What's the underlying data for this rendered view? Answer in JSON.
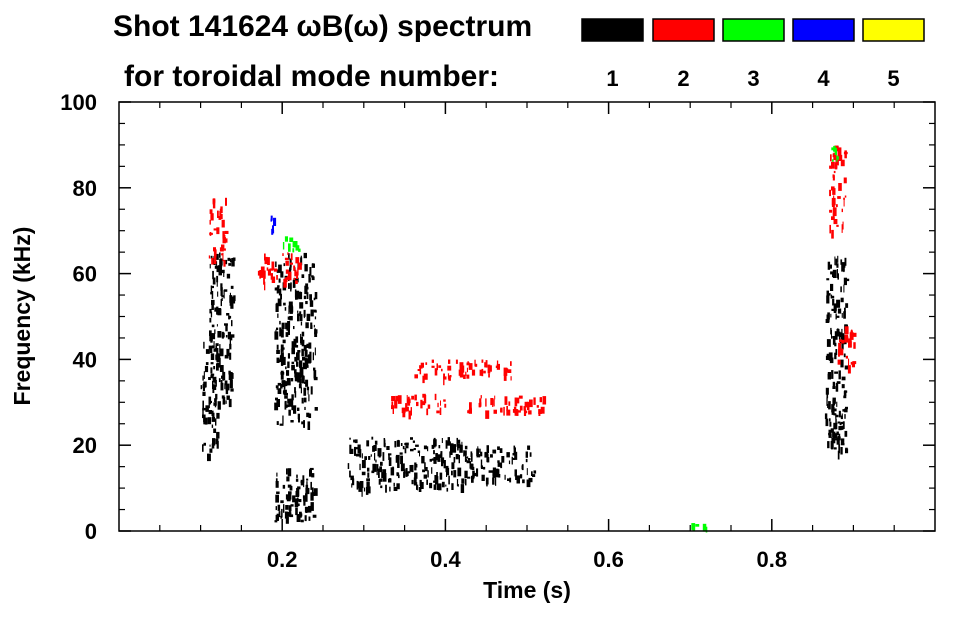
{
  "chart_data": {
    "type": "spectrogram",
    "title_line1": "Shot 141624 ωB(ω) spectrum",
    "title_line2": "for toroidal mode number:",
    "xlabel": "Time (s)",
    "ylabel": "Frequency (kHz)",
    "xlim": [
      0.0,
      1.0
    ],
    "ylim": [
      0,
      100
    ],
    "x_ticks": [
      0.2,
      0.4,
      0.6,
      0.8
    ],
    "x_tick_labels": [
      "0.2",
      "0.4",
      "0.6",
      "0.8"
    ],
    "y_ticks": [
      0,
      20,
      40,
      60,
      80,
      100
    ],
    "y_tick_labels": [
      "0",
      "20",
      "40",
      "60",
      "80",
      "100"
    ],
    "legend": [
      {
        "label": "1",
        "color": "#000000"
      },
      {
        "label": "2",
        "color": "#ff0000"
      },
      {
        "label": "3",
        "color": "#00ff00"
      },
      {
        "label": "4",
        "color": "#0000ff"
      },
      {
        "label": "5",
        "color": "#ffff00"
      }
    ],
    "series": [
      {
        "name": "1",
        "color": "#000000",
        "regions": [
          {
            "t": [
              0.11,
              0.14
            ],
            "f": [
              30,
              65
            ]
          },
          {
            "t": [
              0.1,
              0.12
            ],
            "f": [
              18,
              45
            ]
          },
          {
            "t": [
              0.19,
              0.24
            ],
            "f": [
              25,
              65
            ]
          },
          {
            "t": [
              0.19,
              0.24
            ],
            "f": [
              2,
              15
            ]
          },
          {
            "t": [
              0.28,
              0.32
            ],
            "f": [
              10,
              22
            ]
          },
          {
            "t": [
              0.32,
              0.42
            ],
            "f": [
              10,
              22
            ]
          },
          {
            "t": [
              0.42,
              0.51
            ],
            "f": [
              12,
              20
            ]
          },
          {
            "t": [
              0.865,
              0.89
            ],
            "f": [
              20,
              65
            ]
          },
          {
            "t": [
              0.87,
              0.89
            ],
            "f": [
              18,
              30
            ]
          }
        ]
      },
      {
        "name": "2",
        "color": "#ff0000",
        "regions": [
          {
            "t": [
              0.11,
              0.13
            ],
            "f": [
              62,
              78
            ]
          },
          {
            "t": [
              0.17,
              0.22
            ],
            "f": [
              58,
              65
            ]
          },
          {
            "t": [
              0.33,
              0.4
            ],
            "f": [
              28,
              32
            ]
          },
          {
            "t": [
              0.36,
              0.48
            ],
            "f": [
              36,
              40
            ]
          },
          {
            "t": [
              0.42,
              0.52
            ],
            "f": [
              28,
              32
            ]
          },
          {
            "t": [
              0.87,
              0.89
            ],
            "f": [
              70,
              90
            ]
          },
          {
            "t": [
              0.88,
              0.9
            ],
            "f": [
              38,
              48
            ]
          }
        ]
      },
      {
        "name": "3",
        "color": "#00ff00",
        "regions": [
          {
            "t": [
              0.2,
              0.22
            ],
            "f": [
              65,
              69
            ]
          },
          {
            "t": [
              0.87,
              0.88
            ],
            "f": [
              85,
              90
            ]
          },
          {
            "t": [
              0.7,
              0.72
            ],
            "f": [
              1,
              2
            ]
          }
        ]
      },
      {
        "name": "4",
        "color": "#0000ff",
        "regions": [
          {
            "t": [
              0.185,
              0.195
            ],
            "f": [
              70,
              74
            ]
          }
        ]
      },
      {
        "name": "5",
        "color": "#ffff00",
        "regions": []
      }
    ]
  }
}
